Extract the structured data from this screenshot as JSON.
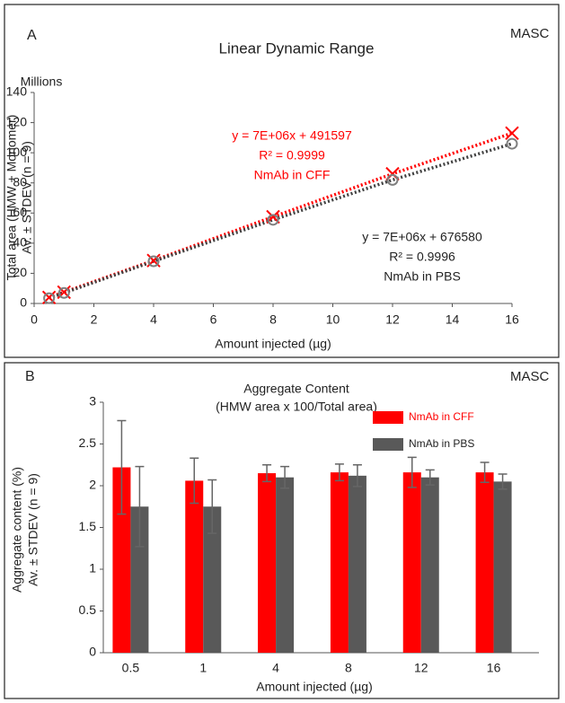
{
  "chart_data": [
    {
      "type": "scatter",
      "panel": "A",
      "note": "MASC",
      "title": "Linear Dynamic Range",
      "y_unit": "Millions",
      "y_label": [
        "Total area (HMW + Monomer)",
        "Av. ± STDEV (n = 9)"
      ],
      "x_label": "Amount injected (µg)",
      "x": [
        0.5,
        1,
        4,
        8,
        12,
        16
      ],
      "series": [
        {
          "name": "NmAb in CFF",
          "color": "#ff0000",
          "marker": "x",
          "values": [
            4,
            7.5,
            28.5,
            57.5,
            86,
            113
          ]
        },
        {
          "name": "NmAb in PBS",
          "color": "#404040",
          "marker": "o",
          "values": [
            3.5,
            7,
            28,
            55.5,
            82,
            106
          ]
        }
      ],
      "annotations": [
        "y = 7E+06x + 491597",
        "R² = 0.9999",
        "y = 7E+06x + 676580",
        "R² = 0.9996"
      ],
      "xlim": [
        0,
        16
      ],
      "xticks": [
        0,
        2,
        4,
        6,
        8,
        10,
        12,
        14,
        16
      ],
      "ylim": [
        0,
        140
      ],
      "yticks": [
        0,
        20,
        40,
        60,
        80,
        100,
        120,
        140
      ],
      "grid": false
    },
    {
      "type": "bar",
      "panel": "B",
      "note": "MASC",
      "title": "Aggregate Content",
      "subtitle": "(HMW area x 100/Total area)",
      "y_label": [
        "Aggregate content (%)",
        "Av. ± STDEV (n = 9)"
      ],
      "x_label": "Amount injected (µg)",
      "categories": [
        "0.5",
        "1",
        "4",
        "8",
        "12",
        "16"
      ],
      "series": [
        {
          "name": "NmAb in CFF",
          "color": "#ff0000",
          "values": [
            2.22,
            2.06,
            2.15,
            2.16,
            2.16,
            2.16
          ],
          "errors": [
            0.56,
            0.27,
            0.1,
            0.1,
            0.18,
            0.12
          ]
        },
        {
          "name": "NmAb in PBS",
          "color": "#595959",
          "values": [
            1.75,
            1.75,
            2.1,
            2.12,
            2.1,
            2.05
          ],
          "errors": [
            0.48,
            0.32,
            0.13,
            0.13,
            0.09,
            0.09
          ]
        }
      ],
      "ylim": [
        0,
        3
      ],
      "yticks": [
        0,
        0.5,
        1,
        1.5,
        2,
        2.5,
        3
      ],
      "grid": false
    }
  ]
}
